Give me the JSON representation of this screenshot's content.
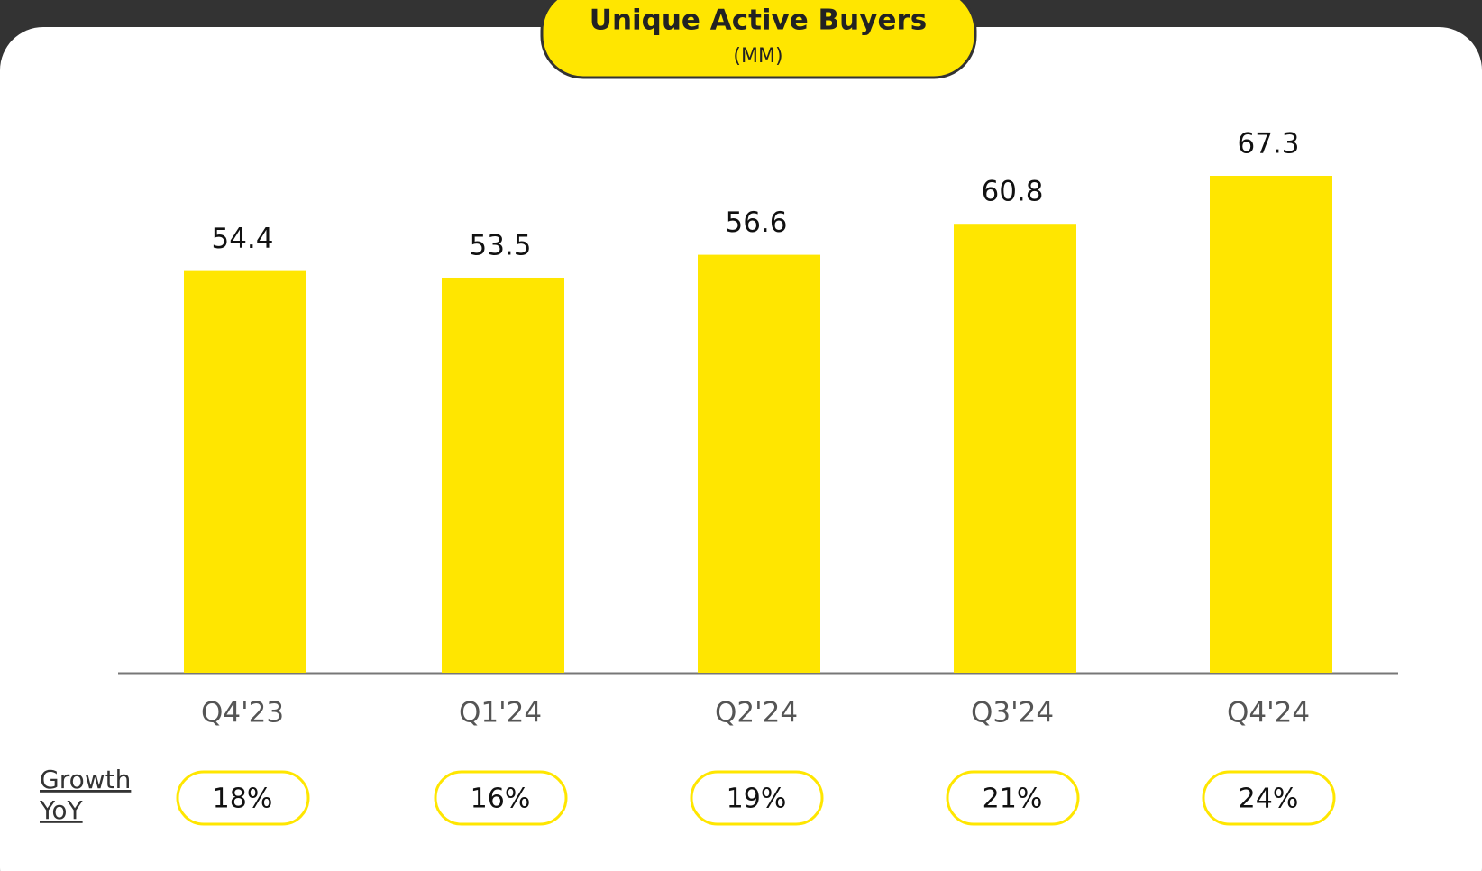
{
  "chart_data": {
    "type": "bar",
    "title": "Unique Active Buyers",
    "subtitle": "(MM)",
    "categories": [
      "Q4'23",
      "Q1'24",
      "Q2'24",
      "Q3'24",
      "Q4'24"
    ],
    "values": [
      54.4,
      53.5,
      56.6,
      60.8,
      67.3
    ],
    "color": "#ffe600",
    "growth": {
      "label": "Growth YoY",
      "values": [
        18,
        16,
        19,
        21,
        24
      ],
      "value_labels": [
        "18%",
        "16%",
        "19%",
        "21%",
        "24%"
      ]
    }
  }
}
